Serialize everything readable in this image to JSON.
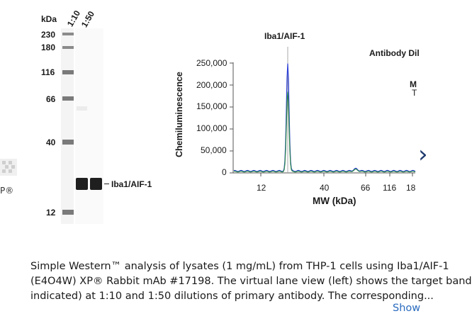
{
  "western": {
    "unit_label": "kDa",
    "lane_labels": [
      "1:10",
      "1:50"
    ],
    "markers": [
      "230",
      "180",
      "116",
      "66",
      "40",
      "12"
    ],
    "band_label": "Iba1/AIF-1"
  },
  "chart": {
    "peak_label": "Iba1/AIF-1",
    "legend_title": "Antibody Dil",
    "legend_partial_1": "M",
    "legend_partial_2": "T",
    "ylabel": "Chemiluminescence",
    "xlabel": "MW (kDa)",
    "yticks": [
      "250,000",
      "200,000",
      "150,000",
      "100,000",
      "50,000",
      "0"
    ],
    "xticks": [
      "12",
      "40",
      "66",
      "116",
      "18"
    ]
  },
  "chart_data": {
    "type": "line",
    "title": "",
    "xlabel": "MW (kDa)",
    "ylabel": "Chemiluminescence",
    "ylim": [
      0,
      250000
    ],
    "peak_annotation": "Iba1/AIF-1",
    "series": [
      {
        "color": "#2b3fd6",
        "peak_height": 245000
      },
      {
        "color": "#2f8a4a",
        "peak_height": 182000
      }
    ]
  },
  "carousel": {
    "prev_text": "P®",
    "next_glyph": "›"
  },
  "caption": {
    "line1": "Simple Western™ analysis of lysates (1 mg/mL) from THP-1 cells using Iba1/AIF-1",
    "line2": "(E4O4W) XP® Rabbit mAb #17198. The virtual lane view (left) shows the target band",
    "line3": "indicated) at 1:10 and 1:50 dilutions of primary antibody. The corresponding...",
    "show_more": "Show"
  }
}
